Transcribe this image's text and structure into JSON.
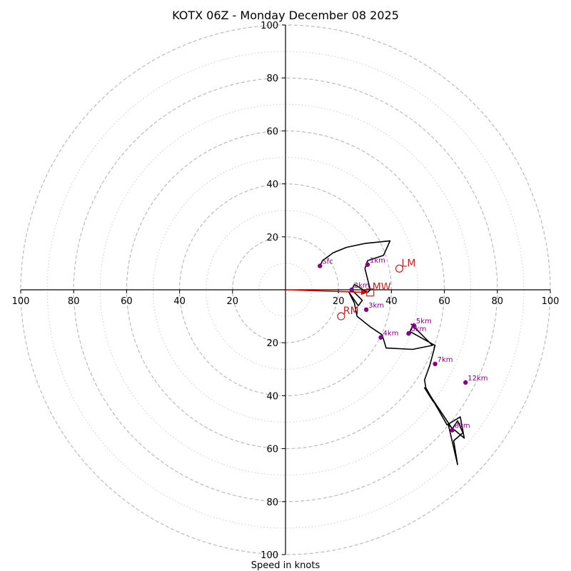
{
  "chart_data": {
    "type": "hodograph",
    "title": "KOTX 06Z - Monday December 08 2025",
    "xlabel": "Speed in knots",
    "units": "knots",
    "max_speed": 100,
    "major_rings": [
      20,
      40,
      60,
      80,
      100
    ],
    "minor_rings": [
      10,
      30,
      50,
      70,
      90
    ],
    "tick_values": [
      20,
      40,
      60,
      80,
      100
    ],
    "colors": {
      "profile": "#000000",
      "level_marker": "#800080",
      "storm_motion": "#b22222",
      "shear_vector": "#dd0000",
      "major_ring": "#bbbbbb",
      "minor_ring": "#cccccc"
    },
    "profile": {
      "u": [
        13,
        14,
        18,
        23,
        30,
        39.5,
        37,
        31,
        30,
        32,
        31,
        26,
        25,
        29,
        27.5,
        24,
        26,
        27,
        32,
        36.5,
        38,
        48,
        55.5,
        47.5,
        48,
        46.5,
        47.5,
        55.5,
        56.5,
        54.5,
        52.5,
        53,
        61,
        66,
        67.5,
        61.5,
        65,
        63.5,
        67,
        65,
        63,
        54,
        52.5,
        55,
        56
      ],
      "v": [
        9,
        11,
        14,
        16,
        17.5,
        18.5,
        13,
        11,
        8,
        0,
        -1,
        2,
        0,
        -4,
        -6,
        -1,
        -5,
        -10,
        -14,
        -17,
        -22,
        -22.5,
        -21,
        -13,
        -13.5,
        -17,
        -16,
        -20.5,
        -21,
        -28.5,
        -34,
        -37,
        -51,
        -48,
        -56,
        -51,
        -66,
        -57,
        -54,
        -49.5,
        -52.5,
        -39,
        -37,
        -41,
        -42.5
      ]
    },
    "levels": [
      {
        "label": "Sfc",
        "u": 13,
        "v": 9
      },
      {
        "label": "1km",
        "u": 31,
        "v": 9.5
      },
      {
        "label": "2km",
        "u": 25,
        "v": 0
      },
      {
        "label": "3km",
        "u": 30.5,
        "v": -7.5
      },
      {
        "label": "4km",
        "u": 36,
        "v": -18
      },
      {
        "label": "5km",
        "u": 48.5,
        "v": -13.5
      },
      {
        "label": "6km",
        "u": 46.5,
        "v": -16.5
      },
      {
        "label": "7km",
        "u": 56.5,
        "v": -28
      },
      {
        "label": "8km",
        "u": 63,
        "v": -53
      },
      {
        "label": "12km",
        "u": 68,
        "v": -35
      }
    ],
    "storm_motions": [
      {
        "label": "LM",
        "u": 43,
        "v": 8,
        "marker": "circle"
      },
      {
        "label": "MW",
        "u": 32,
        "v": -1,
        "marker": "square"
      },
      {
        "label": "RM",
        "u": 21,
        "v": -10,
        "marker": "circle"
      }
    ],
    "shear_vector": {
      "u_start": 0,
      "v_start": 0,
      "u_end": 31,
      "v_end": -1
    }
  }
}
